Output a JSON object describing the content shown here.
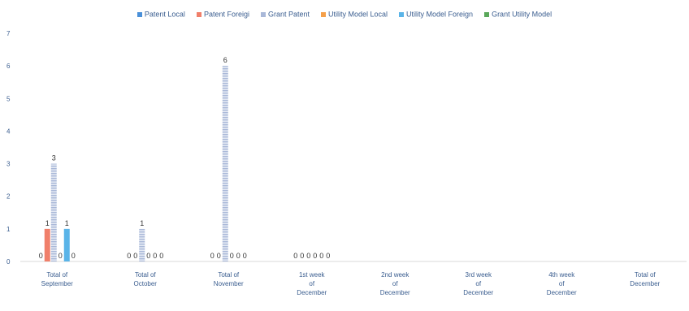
{
  "chart_data": {
    "type": "bar",
    "title": "",
    "xlabel": "",
    "ylabel": "",
    "ylim": [
      0,
      7
    ],
    "yticks": [
      0,
      1,
      2,
      3,
      4,
      5,
      6,
      7
    ],
    "grid": false,
    "legend_position": "top",
    "categories": [
      "Total of September",
      "Total of October",
      "Total of November",
      "1st week of December",
      "2nd week of December",
      "3rd week of December",
      "4th week of December",
      "Total of December"
    ],
    "series": [
      {
        "name": "Patent Local",
        "color": "#4a90d9",
        "pattern": "solid",
        "values": [
          0,
          0,
          0,
          0,
          null,
          null,
          null,
          null
        ],
        "labels": [
          "0",
          "0",
          "0",
          "0",
          "",
          "",
          "",
          ""
        ]
      },
      {
        "name": "Patent  Foreigi",
        "color": "#f07f6a",
        "pattern": "solid",
        "values": [
          1,
          0,
          0,
          0,
          null,
          null,
          null,
          null
        ],
        "labels": [
          "1",
          "0",
          "0",
          "0",
          "",
          "",
          "",
          ""
        ]
      },
      {
        "name": "Grant Patent",
        "color": "#a9b8d8",
        "pattern": "hatched",
        "values": [
          3,
          1,
          6,
          0,
          null,
          null,
          null,
          null
        ],
        "labels": [
          "3",
          "1",
          "6",
          "0",
          "",
          "",
          "",
          ""
        ]
      },
      {
        "name": "Utility Model Local",
        "color": "#f5a04a",
        "pattern": "solid",
        "values": [
          0,
          0,
          0,
          0,
          null,
          null,
          null,
          null
        ],
        "labels": [
          "0",
          "0",
          "0",
          "0",
          "",
          "",
          "",
          ""
        ]
      },
      {
        "name": "Utility Model Foreign",
        "color": "#5ab4e8",
        "pattern": "solid",
        "values": [
          1,
          0,
          0,
          0,
          null,
          null,
          null,
          null
        ],
        "labels": [
          "1",
          "0",
          "0",
          "0",
          "",
          "",
          "",
          ""
        ]
      },
      {
        "name": "Grant Utility Model",
        "color": "#5aa85a",
        "pattern": "solid",
        "values": [
          0,
          0,
          0,
          0,
          null,
          null,
          null,
          null
        ],
        "labels": [
          "0",
          "0",
          "0",
          "0",
          "",
          "",
          "",
          ""
        ]
      }
    ]
  }
}
